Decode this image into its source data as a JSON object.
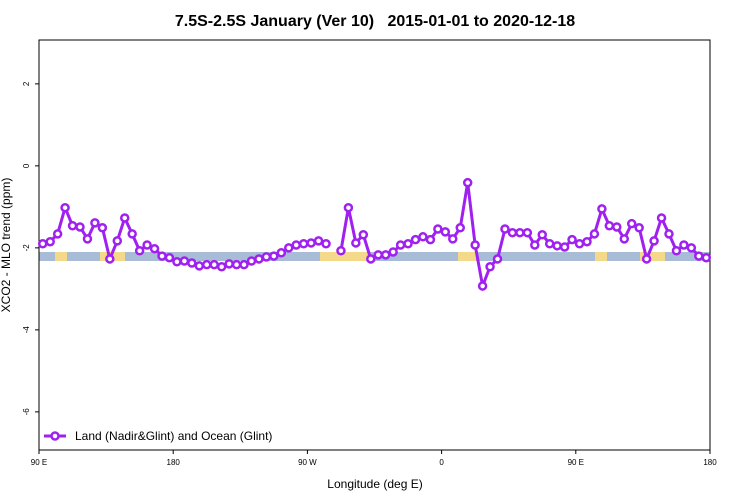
{
  "chart_data": {
    "type": "line",
    "title": "7.5S-2.5S January (Ver 10)   2015-01-01 to 2020-12-18",
    "x_label": "Longitude (deg E)",
    "y_label": "XCO2 - MLO trend (ppm)",
    "xlim": [
      90,
      540
    ],
    "ylim": [
      -6.93,
      3.07
    ],
    "xticks": [
      {
        "value": 90,
        "label": "90 E"
      },
      180,
      {
        "value": 270,
        "label": "90 W"
      },
      {
        "value": 360,
        "label": "0"
      },
      {
        "value": 450,
        "label": "90 E"
      },
      {
        "value": 540,
        "label": "180"
      }
    ],
    "yticks": [
      -6,
      -4,
      -2,
      0,
      2
    ],
    "legend": "bottom-left",
    "x": [
      92.5,
      97.5,
      102.5,
      107.5,
      112.5,
      117.5,
      122.5,
      127.5,
      132.5,
      137.5,
      142.5,
      147.5,
      152.5,
      157.5,
      162.5,
      167.5,
      172.5,
      177.5,
      182.5,
      187.5,
      192.5,
      197.5,
      202.5,
      207.5,
      212.5,
      217.5,
      222.5,
      227.5,
      232.5,
      237.5,
      242.5,
      247.5,
      252.5,
      257.5,
      262.5,
      267.5,
      272.5,
      277.5,
      282.5,
      287.5,
      292.5,
      297.5,
      302.5,
      307.5,
      312.5,
      317.5,
      322.5,
      327.5,
      332.5,
      337.5,
      342.5,
      347.5,
      352.5,
      357.5,
      362.5,
      367.5,
      372.5,
      377.5,
      382.5,
      387.5,
      392.5,
      397.5,
      402.5,
      407.5,
      412.5,
      417.5,
      422.5,
      427.5,
      432.5,
      437.5,
      442.5,
      447.5,
      452.5,
      457.5,
      462.5,
      467.5,
      472.5,
      477.5,
      482.5,
      487.5,
      492.5,
      497.5,
      502.5,
      507.5,
      512.5,
      517.5,
      522.5,
      527.5,
      532.5,
      537.5
    ],
    "series": [
      {
        "name": "Land (Nadir&Glint) and Ocean (Glint)",
        "color": "#a020f0",
        "values": [
          -1.9,
          -1.85,
          -1.66,
          -1.02,
          -1.46,
          -1.49,
          -1.78,
          -1.39,
          -1.51,
          -2.27,
          -1.83,
          -1.27,
          -1.66,
          -2.07,
          -1.93,
          -2.02,
          -2.2,
          -2.24,
          -2.34,
          -2.32,
          -2.37,
          -2.44,
          -2.41,
          -2.41,
          -2.46,
          -2.39,
          -2.41,
          -2.41,
          -2.32,
          -2.27,
          -2.22,
          -2.2,
          -2.12,
          -2.0,
          -1.93,
          -1.9,
          -1.88,
          -1.83,
          -1.9,
          null,
          -2.07,
          -1.02,
          -1.88,
          -1.68,
          -2.27,
          -2.17,
          -2.17,
          -2.1,
          -1.93,
          -1.9,
          -1.8,
          -1.73,
          -1.8,
          -1.54,
          -1.61,
          -1.78,
          -1.51,
          -0.41,
          -1.93,
          -2.93,
          -2.46,
          -2.27,
          -1.54,
          -1.63,
          -1.63,
          -1.63,
          -1.93,
          -1.68,
          -1.9,
          -1.95,
          -1.98,
          -1.8,
          -1.9,
          -1.85,
          -1.66,
          -1.05,
          -1.46,
          -1.49,
          -1.78,
          -1.41,
          -1.51,
          -2.27,
          -1.83,
          -1.27,
          -1.66,
          -2.07,
          -1.93,
          -2.0,
          -2.2,
          -2.24
        ]
      }
    ]
  }
}
